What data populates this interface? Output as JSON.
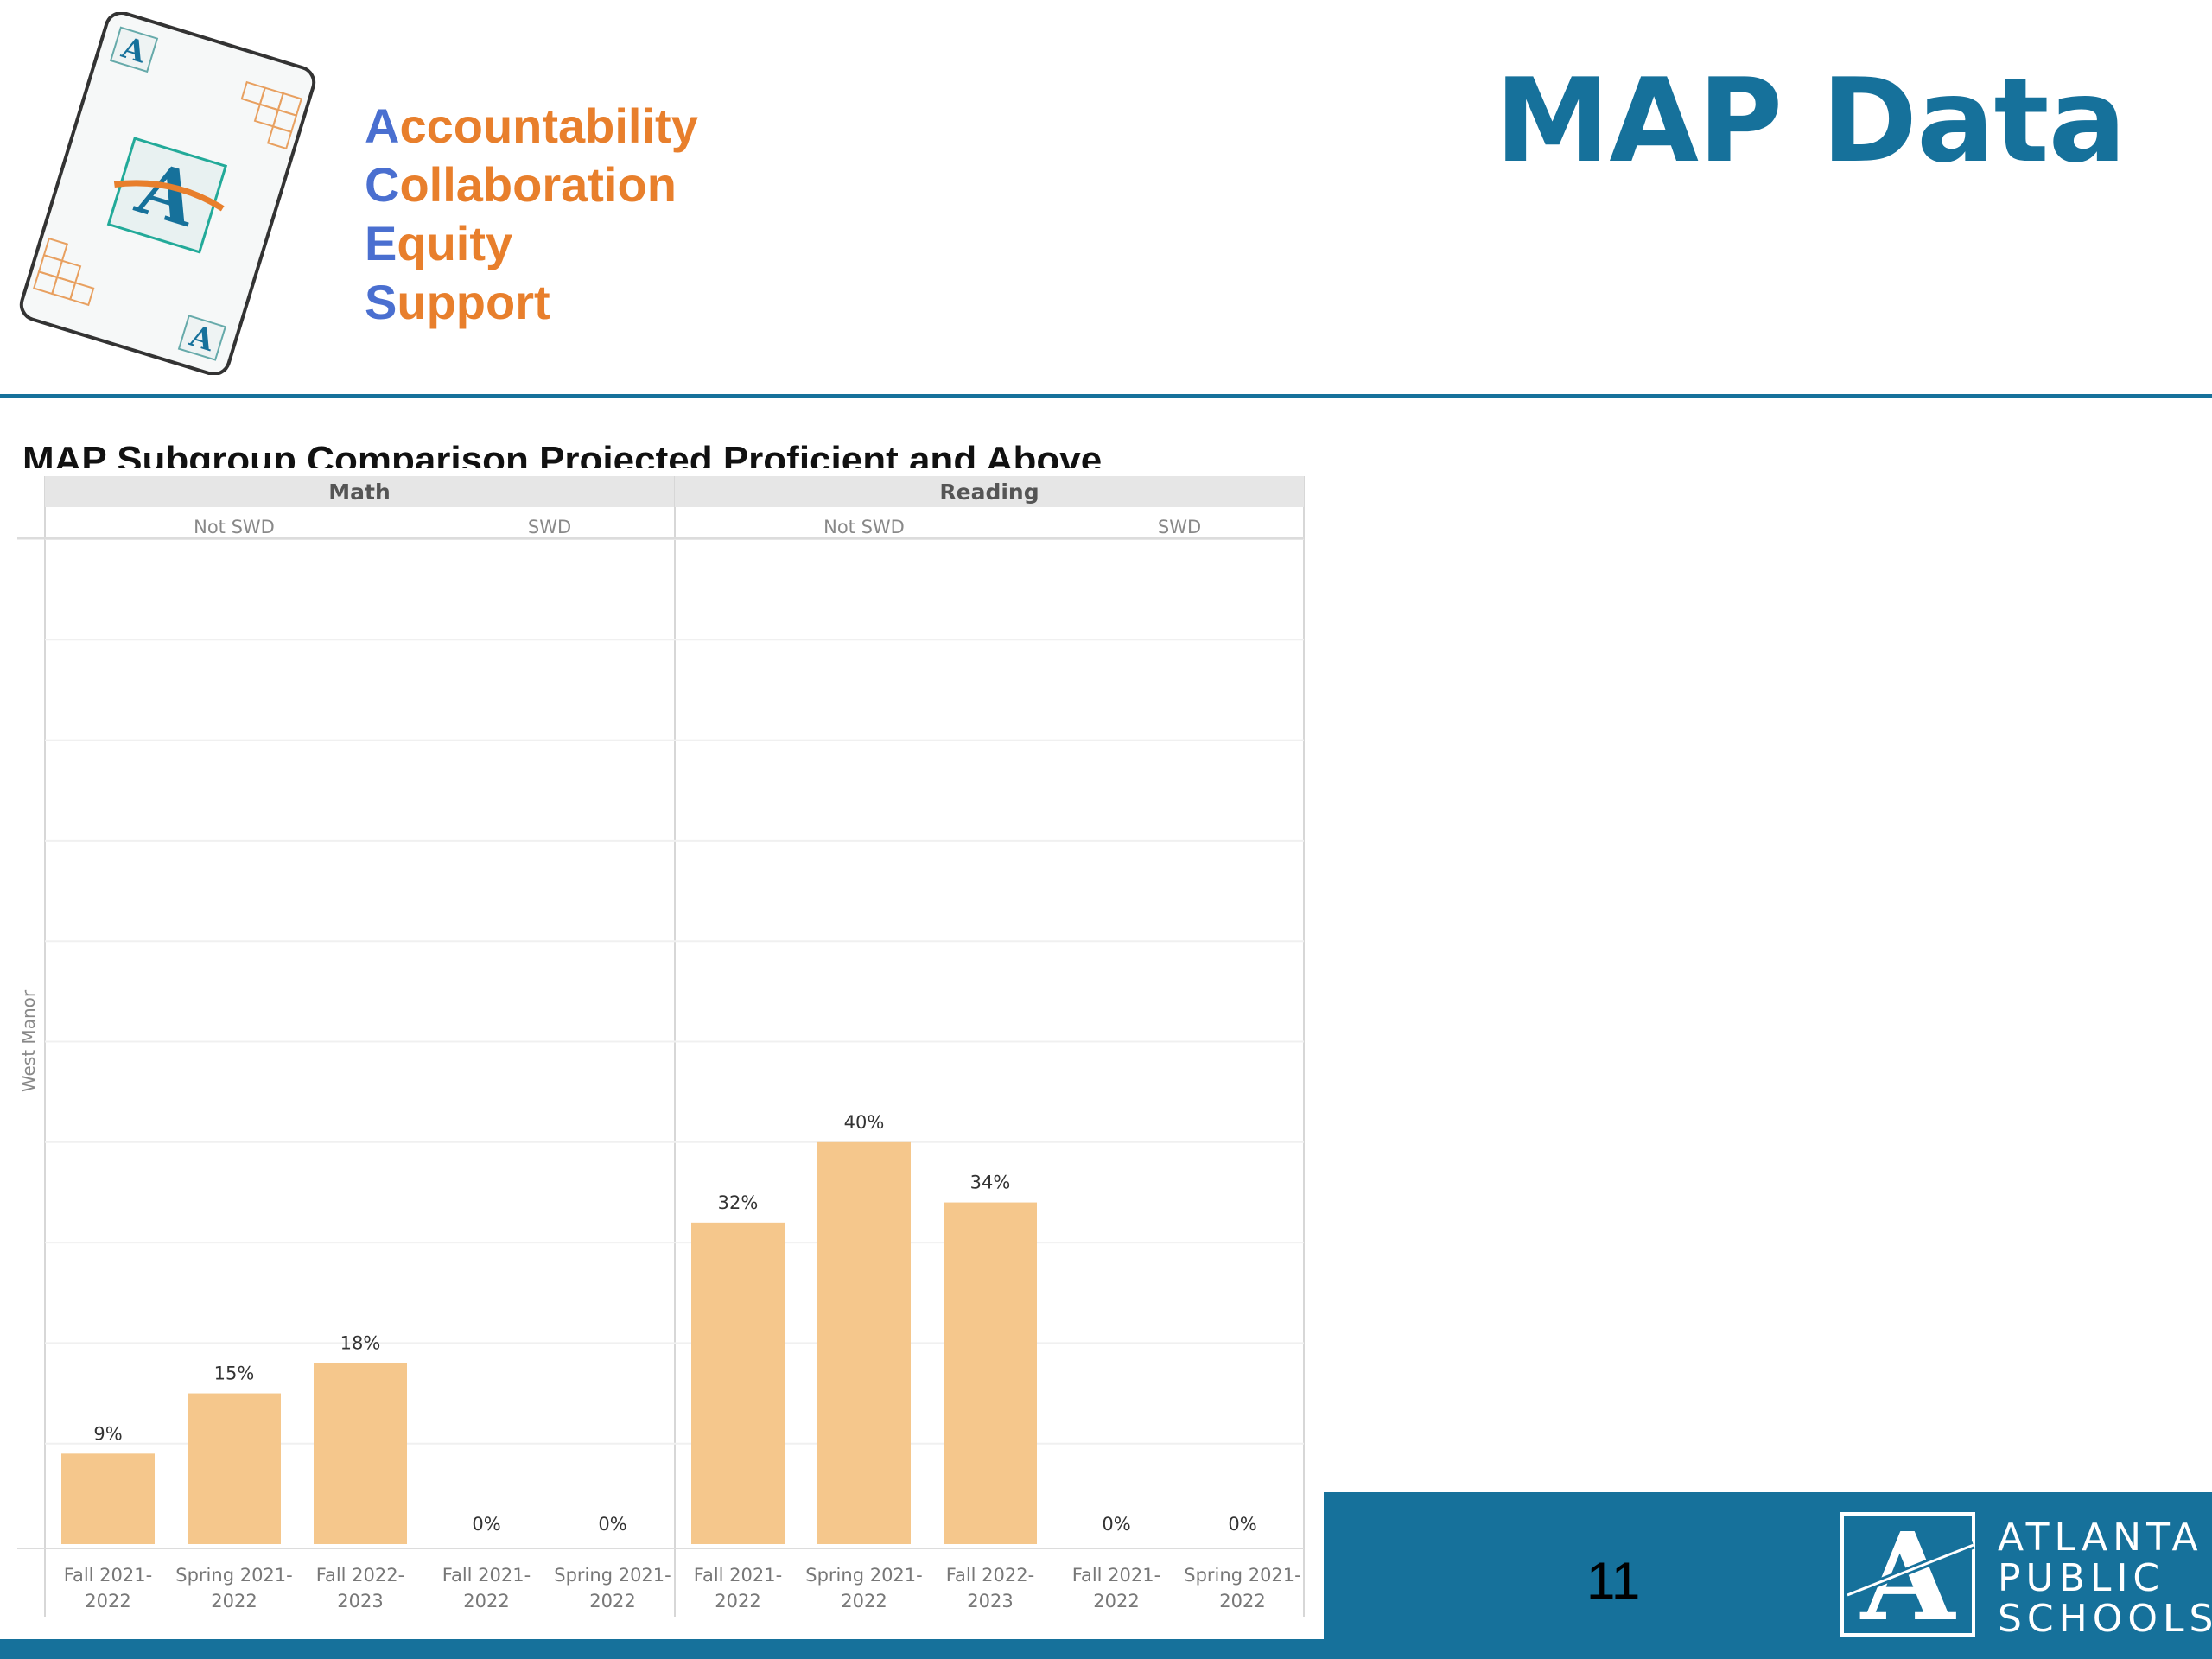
{
  "header": {
    "acronym": [
      {
        "letter": "A",
        "rest": "ccountability"
      },
      {
        "letter": "C",
        "rest": "ollaboration"
      },
      {
        "letter": "E",
        "rest": "quity"
      },
      {
        "letter": "S",
        "rest": "upport"
      }
    ],
    "title": "MAP Data"
  },
  "chart_title": "MAP Subgroup Comparison Projected Proficient and Above",
  "footer": {
    "slide_number": "11",
    "org_lines": [
      "ATLANTA",
      "PUBLIC",
      "SCHOOLS"
    ]
  },
  "colors": {
    "brand_blue": "#16719b",
    "bar": "#f5c78c",
    "acronym_orange": "#e87f2c",
    "acronym_blue": "#4a6fd0"
  },
  "chart_data": {
    "type": "bar",
    "title": "MAP Subgroup Comparison Projected Proficient and Above",
    "row_label": "West Manor",
    "ylim": [
      0,
      100
    ],
    "grid": true,
    "panels": [
      {
        "subject": "Math",
        "groups": [
          {
            "name": "Not SWD",
            "categories": [
              "Fall 2021-2022",
              "Spring 2021-2022",
              "Fall 2022-2023"
            ],
            "values": [
              9,
              15,
              18
            ],
            "labels": [
              "9%",
              "15%",
              "18%"
            ]
          },
          {
            "name": "SWD",
            "categories": [
              "Fall 2021-2022",
              "Spring 2021-2022"
            ],
            "values": [
              0,
              0
            ],
            "labels": [
              "0%",
              "0%"
            ]
          }
        ]
      },
      {
        "subject": "Reading",
        "groups": [
          {
            "name": "Not SWD",
            "categories": [
              "Fall 2021-2022",
              "Spring 2021-2022",
              "Fall 2022-2023"
            ],
            "values": [
              32,
              40,
              34
            ],
            "labels": [
              "32%",
              "40%",
              "34%"
            ]
          },
          {
            "name": "SWD",
            "categories": [
              "Fall 2021-2022",
              "Spring 2021-2022"
            ],
            "values": [
              0,
              0
            ],
            "labels": [
              "0%",
              "0%"
            ]
          }
        ]
      }
    ]
  }
}
